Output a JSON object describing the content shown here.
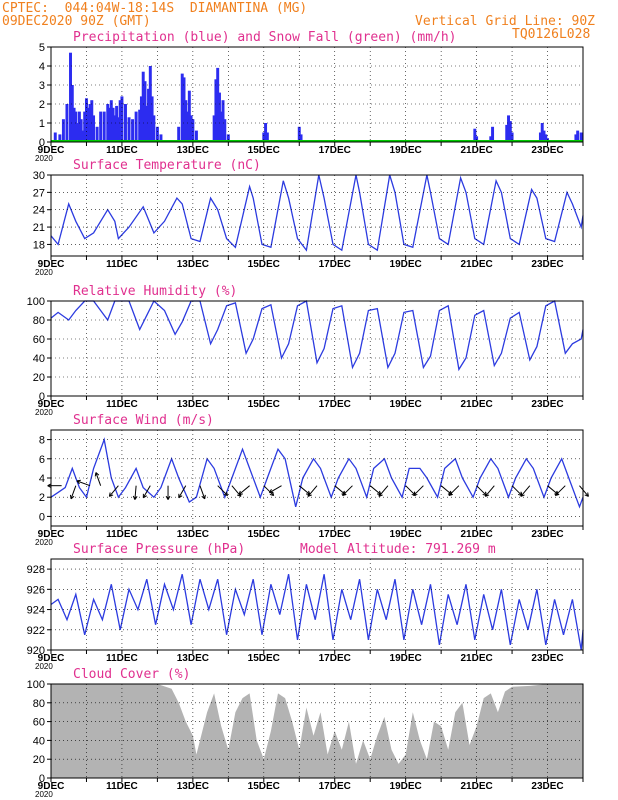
{
  "header": {
    "line1": "CPTEC:  044:04W-18:14S  DIAMANTINA (MG)",
    "line2_left": "09DEC2020 90Z (GMT)",
    "line2_right": "Vertical Grid Line: 90Z",
    "code": "TQ0126L028"
  },
  "x_labels": [
    "9DEC",
    "11DEC",
    "13DEC",
    "15DEC",
    "17DEC",
    "19DEC",
    "21DEC",
    "23DEC"
  ],
  "year_label": "2020",
  "colors": {
    "line": "#2c3be0",
    "bar": "#2c2cf0",
    "snow": "#00cc00",
    "cloud": "#b3b3b3",
    "title": "#e0308f",
    "header": "#f0801e"
  },
  "chart_data": [
    {
      "type": "bar",
      "title": "Precipitation (blue) and Snow Fall (green) (mm/h)",
      "ylim": [
        0,
        5
      ],
      "yticks": [
        0,
        1,
        2,
        3,
        4,
        5
      ],
      "x_range_days": [
        9,
        24
      ],
      "series": [
        {
          "name": "Precipitation",
          "x": [
            9.12,
            9.25,
            9.35,
            9.45,
            9.55,
            9.6,
            9.65,
            9.7,
            9.75,
            9.8,
            9.85,
            9.9,
            9.95,
            10.0,
            10.05,
            10.1,
            10.15,
            10.2,
            10.3,
            10.4,
            10.5,
            10.6,
            10.65,
            10.7,
            10.75,
            10.8,
            10.85,
            10.9,
            10.95,
            11.0,
            11.1,
            11.2,
            11.3,
            11.4,
            11.5,
            11.55,
            11.6,
            11.65,
            11.7,
            11.75,
            11.8,
            11.85,
            11.9,
            12.0,
            12.1,
            12.6,
            12.7,
            12.75,
            12.8,
            12.85,
            12.9,
            12.95,
            13.0,
            13.1,
            13.6,
            13.65,
            13.7,
            13.75,
            13.8,
            13.85,
            13.9,
            14.0,
            15.0,
            15.05,
            15.1,
            16.0,
            16.05,
            20.95,
            21.0,
            21.4,
            21.45,
            21.85,
            21.9,
            21.95,
            22.0,
            22.8,
            22.85,
            22.9,
            22.95,
            23.0,
            23.8,
            23.85,
            23.95
          ],
          "values": [
            0.5,
            0.4,
            1.2,
            2.0,
            4.7,
            3.0,
            1.8,
            1.6,
            1.0,
            1.6,
            1.2,
            0.6,
            1.6,
            2.3,
            1.8,
            2.0,
            2.2,
            1.4,
            0.8,
            1.6,
            1.6,
            2.0,
            1.8,
            2.2,
            1.8,
            1.4,
            1.9,
            1.3,
            2.2,
            2.4,
            2.0,
            1.3,
            1.2,
            1.6,
            1.7,
            2.4,
            3.7,
            3.2,
            1.9,
            2.8,
            4.0,
            2.4,
            1.4,
            0.8,
            0.4,
            0.8,
            3.6,
            3.4,
            2.2,
            1.6,
            2.7,
            1.4,
            1.2,
            0.6,
            1.4,
            3.3,
            3.9,
            2.6,
            1.6,
            2.2,
            1.2,
            0.4,
            0.5,
            1.0,
            0.5,
            0.8,
            0.4,
            0.7,
            0.3,
            0.3,
            0.8,
            0.9,
            1.4,
            1.1,
            0.5,
            0.5,
            1.0,
            0.6,
            0.4,
            0.2,
            0.4,
            0.6,
            0.5
          ]
        },
        {
          "name": "Snow Fall",
          "x": [],
          "values": []
        }
      ]
    },
    {
      "type": "line",
      "title": "Surface Temperature (nC)",
      "ylim": [
        16,
        30
      ],
      "yticks": [
        18,
        21,
        24,
        27,
        30
      ],
      "series": [
        {
          "name": "Temperature",
          "x": [
            9.0,
            9.2,
            9.5,
            9.7,
            9.95,
            10.2,
            10.6,
            10.8,
            10.9,
            11.2,
            11.6,
            11.7,
            11.9,
            12.2,
            12.55,
            12.7,
            12.95,
            13.2,
            13.5,
            13.7,
            13.95,
            14.2,
            14.6,
            14.7,
            14.95,
            15.2,
            15.55,
            15.7,
            15.95,
            16.2,
            16.55,
            16.7,
            16.95,
            17.2,
            17.6,
            17.7,
            17.95,
            18.2,
            18.55,
            18.7,
            18.95,
            19.2,
            19.6,
            19.7,
            19.95,
            20.2,
            20.55,
            20.7,
            20.95,
            21.2,
            21.55,
            21.7,
            21.95,
            22.2,
            22.55,
            22.7,
            22.95,
            23.2,
            23.55,
            23.7,
            23.95,
            24.0
          ],
          "values": [
            19.5,
            18,
            25,
            22,
            19,
            20,
            24,
            22,
            19,
            21,
            24.5,
            23,
            20,
            22,
            26,
            25,
            19,
            18.5,
            26,
            24,
            19,
            17.5,
            28,
            26,
            18,
            17.5,
            29,
            26,
            19,
            17,
            30,
            26,
            18,
            17,
            30,
            27,
            18,
            17,
            30,
            27,
            18,
            17.5,
            30,
            27,
            19,
            18,
            29.5,
            27,
            19,
            18,
            29,
            27,
            19,
            18,
            27.5,
            26,
            19,
            18.5,
            27,
            25,
            21,
            23
          ]
        }
      ]
    },
    {
      "type": "line",
      "title": "Relative Humidity (%)",
      "ylim": [
        0,
        100
      ],
      "yticks": [
        0,
        20,
        40,
        60,
        80,
        100
      ],
      "series": [
        {
          "name": "Humidity",
          "x": [
            9.0,
            9.2,
            9.5,
            9.7,
            9.95,
            10.2,
            10.6,
            10.8,
            10.9,
            11.2,
            11.5,
            11.7,
            11.9,
            12.2,
            12.5,
            12.7,
            12.95,
            13.2,
            13.5,
            13.7,
            13.95,
            14.2,
            14.5,
            14.7,
            14.95,
            15.2,
            15.5,
            15.7,
            15.95,
            16.2,
            16.5,
            16.7,
            16.95,
            17.2,
            17.5,
            17.7,
            17.95,
            18.2,
            18.5,
            18.7,
            18.95,
            19.2,
            19.5,
            19.7,
            19.95,
            20.2,
            20.5,
            20.7,
            20.95,
            21.2,
            21.5,
            21.7,
            21.95,
            22.2,
            22.5,
            22.7,
            22.95,
            23.2,
            23.5,
            23.7,
            23.95,
            24.0
          ],
          "values": [
            82,
            88,
            80,
            90,
            100,
            100,
            80,
            100,
            100,
            100,
            70,
            85,
            100,
            90,
            65,
            78,
            100,
            100,
            55,
            70,
            95,
            98,
            45,
            60,
            92,
            96,
            40,
            55,
            95,
            100,
            35,
            50,
            92,
            95,
            30,
            45,
            90,
            92,
            30,
            45,
            88,
            90,
            30,
            42,
            90,
            95,
            28,
            40,
            85,
            90,
            32,
            45,
            82,
            88,
            38,
            52,
            95,
            100,
            45,
            55,
            60,
            70
          ]
        }
      ]
    },
    {
      "type": "line",
      "title": "Surface Wind (m/s)",
      "ylim": [
        -1,
        9
      ],
      "yticks": [
        0,
        2,
        4,
        6,
        8
      ],
      "series": [
        {
          "name": "Wind speed",
          "x": [
            9.0,
            9.2,
            9.4,
            9.6,
            9.8,
            10.0,
            10.2,
            10.5,
            10.7,
            10.9,
            11.1,
            11.4,
            11.6,
            11.9,
            12.1,
            12.4,
            12.6,
            12.9,
            13.1,
            13.4,
            13.6,
            13.9,
            14.1,
            14.4,
            14.6,
            14.9,
            15.1,
            15.4,
            15.6,
            15.9,
            16.1,
            16.4,
            16.6,
            16.9,
            17.1,
            17.4,
            17.6,
            17.9,
            18.1,
            18.4,
            18.6,
            18.9,
            19.1,
            19.4,
            19.6,
            19.9,
            20.1,
            20.4,
            20.6,
            20.9,
            21.1,
            21.4,
            21.6,
            21.9,
            22.1,
            22.4,
            22.6,
            22.9,
            23.1,
            23.4,
            23.6,
            23.9,
            24.0
          ],
          "values": [
            2,
            2.5,
            3,
            5,
            3,
            2,
            5,
            8,
            4,
            2,
            3,
            5,
            3,
            2,
            3,
            6,
            4,
            1.5,
            2,
            6,
            5,
            2,
            4,
            7,
            5,
            2,
            4,
            7,
            6,
            1,
            4,
            6,
            5,
            2,
            4,
            6,
            5,
            2,
            5,
            6,
            4,
            2,
            5,
            5,
            4,
            2,
            5,
            6,
            4,
            2,
            4,
            6,
            5,
            2,
            4,
            6,
            5,
            2,
            4,
            6,
            4,
            1,
            2
          ]
        }
      ],
      "arrows": [
        {
          "x": 9.3,
          "dir": 180
        },
        {
          "x": 9.7,
          "dir": 110
        },
        {
          "x": 10.1,
          "dir": 200
        },
        {
          "x": 10.4,
          "dir": 250
        },
        {
          "x": 10.9,
          "dir": 130
        },
        {
          "x": 11.4,
          "dir": 95
        },
        {
          "x": 11.8,
          "dir": 120
        },
        {
          "x": 12.3,
          "dir": 90
        },
        {
          "x": 12.8,
          "dir": 120
        },
        {
          "x": 13.2,
          "dir": 70
        },
        {
          "x": 13.7,
          "dir": 45
        },
        {
          "x": 14.1,
          "dir": 50
        },
        {
          "x": 14.6,
          "dir": 140
        },
        {
          "x": 15.0,
          "dir": 45
        },
        {
          "x": 15.5,
          "dir": 150
        },
        {
          "x": 16.0,
          "dir": 40
        },
        {
          "x": 16.5,
          "dir": 130
        },
        {
          "x": 17.0,
          "dir": 40
        },
        {
          "x": 17.5,
          "dir": 135
        },
        {
          "x": 18.0,
          "dir": 40
        },
        {
          "x": 18.5,
          "dir": 130
        },
        {
          "x": 19.0,
          "dir": 45
        },
        {
          "x": 19.5,
          "dir": 135
        },
        {
          "x": 20.0,
          "dir": 40
        },
        {
          "x": 20.5,
          "dir": 135
        },
        {
          "x": 21.0,
          "dir": 45
        },
        {
          "x": 21.5,
          "dir": 130
        },
        {
          "x": 22.0,
          "dir": 45
        },
        {
          "x": 22.5,
          "dir": 130
        },
        {
          "x": 23.0,
          "dir": 40
        },
        {
          "x": 23.5,
          "dir": 135
        },
        {
          "x": 23.9,
          "dir": 50
        }
      ]
    },
    {
      "type": "line",
      "title": "Surface Pressure (hPa)",
      "annotation": "Model Altitude: 791.269 m",
      "ylim": [
        920,
        929
      ],
      "yticks": [
        920,
        922,
        924,
        926,
        928
      ],
      "series": [
        {
          "name": "Pressure",
          "x": [
            9.0,
            9.2,
            9.45,
            9.7,
            9.95,
            10.2,
            10.45,
            10.7,
            10.95,
            11.2,
            11.45,
            11.7,
            11.95,
            12.2,
            12.45,
            12.7,
            12.95,
            13.2,
            13.45,
            13.7,
            13.95,
            14.2,
            14.45,
            14.7,
            14.95,
            15.2,
            15.45,
            15.7,
            15.95,
            16.2,
            16.45,
            16.7,
            16.95,
            17.2,
            17.45,
            17.7,
            17.95,
            18.2,
            18.45,
            18.7,
            18.95,
            19.2,
            19.45,
            19.7,
            19.95,
            20.2,
            20.45,
            20.7,
            20.95,
            21.2,
            21.45,
            21.7,
            21.95,
            22.2,
            22.45,
            22.7,
            22.95,
            23.2,
            23.45,
            23.7,
            23.95,
            24.0
          ],
          "values": [
            924.5,
            925,
            923,
            925.5,
            921.5,
            925,
            923,
            926.5,
            922,
            926,
            924,
            927,
            922.5,
            926.5,
            924,
            927.5,
            922.5,
            927,
            924,
            927,
            921.5,
            926,
            923.5,
            927,
            921.5,
            926.5,
            923.5,
            927.5,
            921,
            926.5,
            923,
            927.5,
            921,
            926,
            923,
            927,
            921,
            926,
            923,
            927,
            921,
            926,
            922.5,
            926.5,
            920.5,
            925.5,
            922.5,
            926.5,
            921,
            925.5,
            922,
            926,
            920.5,
            925,
            922,
            926,
            920.5,
            925,
            921.5,
            925,
            919.5,
            922
          ]
        }
      ]
    },
    {
      "type": "area",
      "title": "Cloud Cover (%)",
      "ylim": [
        0,
        100
      ],
      "yticks": [
        0,
        20,
        40,
        60,
        80,
        100
      ],
      "series": [
        {
          "name": "Cloud cover",
          "x": [
            9.0,
            9.5,
            10.0,
            10.5,
            11.0,
            11.5,
            12.0,
            12.4,
            12.6,
            12.8,
            13.0,
            13.1,
            13.2,
            13.4,
            13.6,
            13.8,
            14.0,
            14.2,
            14.4,
            14.6,
            14.8,
            15.0,
            15.2,
            15.4,
            15.6,
            15.8,
            16.0,
            16.2,
            16.4,
            16.6,
            16.8,
            17.0,
            17.2,
            17.4,
            17.6,
            17.8,
            18.0,
            18.2,
            18.4,
            18.6,
            18.8,
            19.0,
            19.2,
            19.4,
            19.6,
            19.8,
            20.0,
            20.2,
            20.4,
            20.6,
            20.8,
            21.0,
            21.2,
            21.4,
            21.6,
            21.8,
            22.0,
            22.5,
            23.0,
            23.5,
            24.0
          ],
          "values": [
            100,
            100,
            100,
            100,
            100,
            100,
            100,
            95,
            80,
            60,
            45,
            25,
            40,
            70,
            90,
            55,
            30,
            70,
            85,
            90,
            40,
            20,
            50,
            90,
            85,
            60,
            30,
            75,
            45,
            70,
            25,
            50,
            30,
            60,
            15,
            40,
            20,
            45,
            65,
            30,
            15,
            25,
            70,
            40,
            20,
            60,
            55,
            30,
            70,
            80,
            35,
            55,
            85,
            90,
            70,
            92,
            97,
            98,
            100,
            100,
            100
          ]
        }
      ]
    }
  ]
}
